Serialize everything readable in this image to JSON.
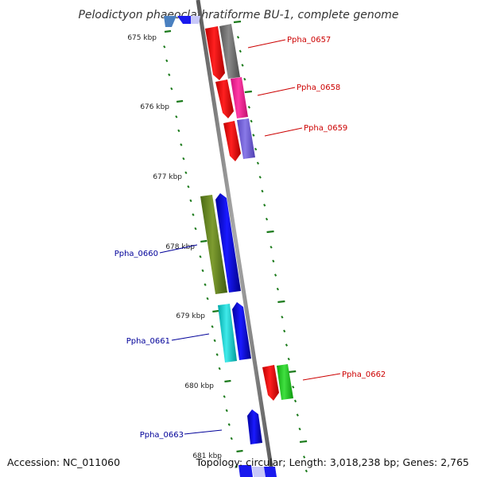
{
  "title": "Pelodictyon phaeoclathratiforme BU-1, complete genome",
  "footer": {
    "accession": "Accession: NC_011060",
    "summary": "Topology: circular; Length: 3,018,238 bp; Genes: 2,765"
  },
  "ticks": [
    "675 kbp",
    "676 kbp",
    "677 kbp",
    "678 kbp",
    "679 kbp",
    "680 kbp",
    "681 kbp"
  ],
  "gene_labels": [
    {
      "name": "Ppha_0657",
      "color": "#cc0000"
    },
    {
      "name": "Ppha_0658",
      "color": "#cc0000"
    },
    {
      "name": "Ppha_0659",
      "color": "#cc0000"
    },
    {
      "name": "Ppha_0660",
      "color": "#000099"
    },
    {
      "name": "Ppha_0661",
      "color": "#000099"
    },
    {
      "name": "Ppha_0662",
      "color": "#cc0000"
    },
    {
      "name": "Ppha_0663",
      "color": "#000099"
    }
  ],
  "colors": {
    "backbone": "#808080",
    "tick_marks": "#1a7a1a",
    "cds_forward": "#ff0000",
    "cds_reverse": "#0000ee"
  }
}
